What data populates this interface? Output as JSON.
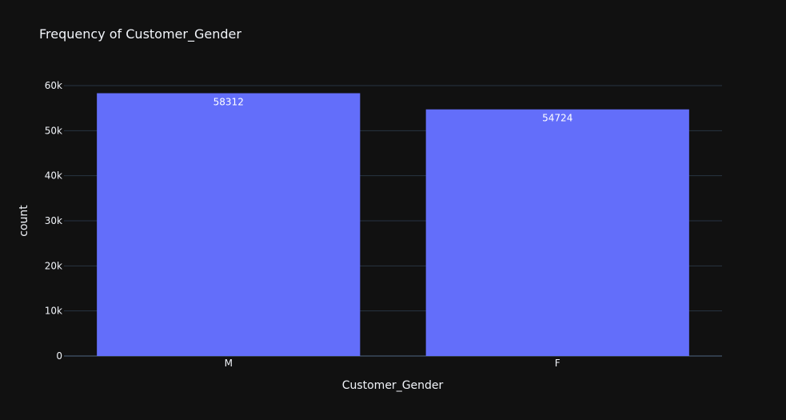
{
  "chart_data": {
    "type": "bar",
    "title": "Frequency of Customer_Gender",
    "xlabel": "Customer_Gender",
    "ylabel": "count",
    "categories": [
      "M",
      "F"
    ],
    "values": [
      58312,
      54724
    ],
    "value_labels": [
      "58312",
      "54724"
    ],
    "ylim": [
      0,
      60000
    ],
    "yticks": [
      0,
      10000,
      20000,
      30000,
      40000,
      50000,
      60000
    ],
    "ytick_labels": [
      "0",
      "10k",
      "20k",
      "30k",
      "40k",
      "50k",
      "60k"
    ],
    "grid": true,
    "legend": "none",
    "colors": {
      "bar": "#636efa",
      "background": "#111111",
      "grid": "#283442",
      "text": "#f2f5fa"
    }
  }
}
